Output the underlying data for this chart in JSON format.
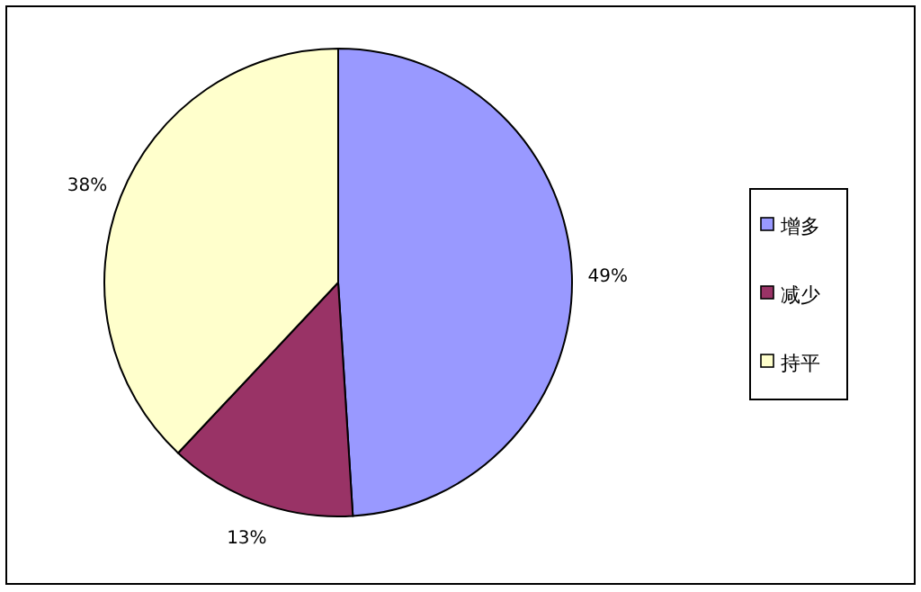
{
  "chart_data": {
    "type": "pie",
    "categories": [
      "增多",
      "减少",
      "持平"
    ],
    "values": [
      49,
      13,
      38
    ],
    "colors": [
      "#9999ff",
      "#993366",
      "#ffffcc"
    ],
    "value_labels": [
      "49%",
      "13%",
      "38%"
    ],
    "legend": "right"
  }
}
